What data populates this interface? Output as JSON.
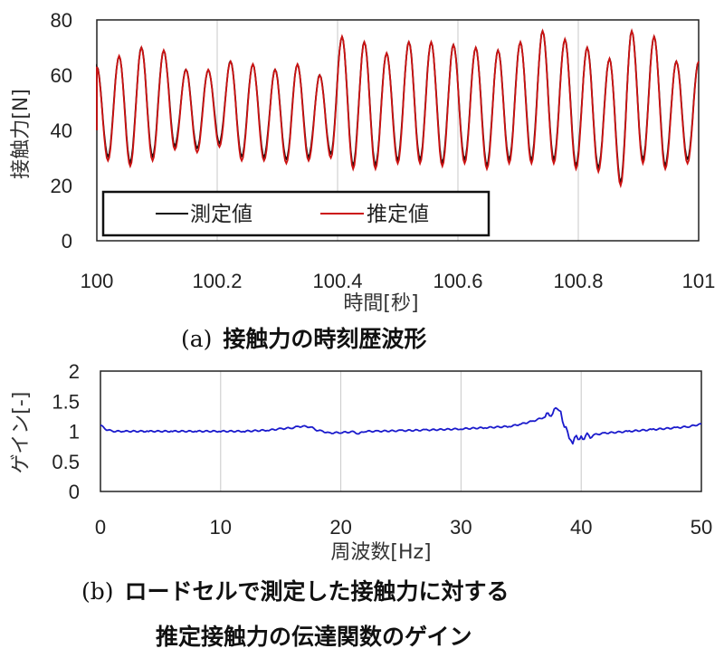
{
  "chart_data": [
    {
      "type": "line",
      "xlabel": "時間[秒]",
      "ylabel": "接触力[N]",
      "xlim": [
        100,
        101
      ],
      "ylim": [
        0,
        80
      ],
      "xticks": [
        "100",
        "100.2",
        "100.4",
        "100.6",
        "100.8",
        "101"
      ],
      "yticks": [
        "0",
        "20",
        "40",
        "60",
        "80"
      ],
      "grid": "vertical",
      "legend_position": "bottom-left",
      "caption_letter": "(a)",
      "caption_text": "接触力の時刻歴波形",
      "cycles": {
        "t_start": 100.0,
        "t_end": 101.0,
        "count": 27,
        "peaks": [
          63,
          67,
          70,
          69,
          62,
          62,
          65,
          64,
          62,
          64,
          60,
          74,
          72,
          68,
          72,
          72,
          71,
          70,
          69,
          72,
          76,
          73,
          70,
          66,
          76,
          74,
          65
        ],
        "troughs": [
          29,
          27,
          29,
          33,
          32,
          34,
          29,
          29,
          28,
          29,
          30,
          26,
          26,
          28,
          28,
          27,
          28,
          26,
          28,
          28,
          28,
          26,
          25,
          20,
          28,
          26,
          28
        ]
      },
      "series": [
        {
          "name": "測定値",
          "color": "#111111"
        },
        {
          "name": "推定値",
          "color": "#cc1111"
        }
      ]
    },
    {
      "type": "line",
      "xlabel": "周波数[Hz]",
      "ylabel": "ゲイン[-]",
      "xlim": [
        0,
        50
      ],
      "ylim": [
        0,
        2
      ],
      "xticks": [
        "0",
        "10",
        "20",
        "30",
        "40",
        "50"
      ],
      "yticks": [
        "0",
        "0.5",
        "1",
        "1.5",
        "2"
      ],
      "grid": "vertical",
      "caption_letter": "(b)",
      "caption_line1": "ロードセルで測定した接触力に対する",
      "caption_line2": "推定接触力の伝達関数のゲイン",
      "series": [
        {
          "color": "#1a1acc",
          "x": [
            0,
            0.5,
            1,
            2,
            4,
            6,
            8,
            10,
            12,
            14,
            15,
            16,
            16.5,
            17,
            17.5,
            18,
            18.5,
            19,
            20,
            21,
            21.5,
            22,
            23,
            25,
            27,
            30,
            32,
            34,
            35,
            36,
            37,
            37.5,
            38,
            38.3,
            38.6,
            39,
            39.3,
            39.6,
            40,
            41,
            42,
            44,
            46,
            48,
            49,
            50
          ],
          "y": [
            1.1,
            1.03,
            1.0,
            1.0,
            1.0,
            1.0,
            1.0,
            1.0,
            1.0,
            1.02,
            1.04,
            1.06,
            1.08,
            1.08,
            1.07,
            1.02,
            1.0,
            0.97,
            0.98,
            0.99,
            0.96,
            1.0,
            1.0,
            1.01,
            1.02,
            1.04,
            1.06,
            1.08,
            1.12,
            1.17,
            1.24,
            1.3,
            1.36,
            1.3,
            1.12,
            0.9,
            0.82,
            0.88,
            0.9,
            0.94,
            0.97,
            1.0,
            1.03,
            1.06,
            1.08,
            1.12
          ]
        }
      ]
    }
  ]
}
